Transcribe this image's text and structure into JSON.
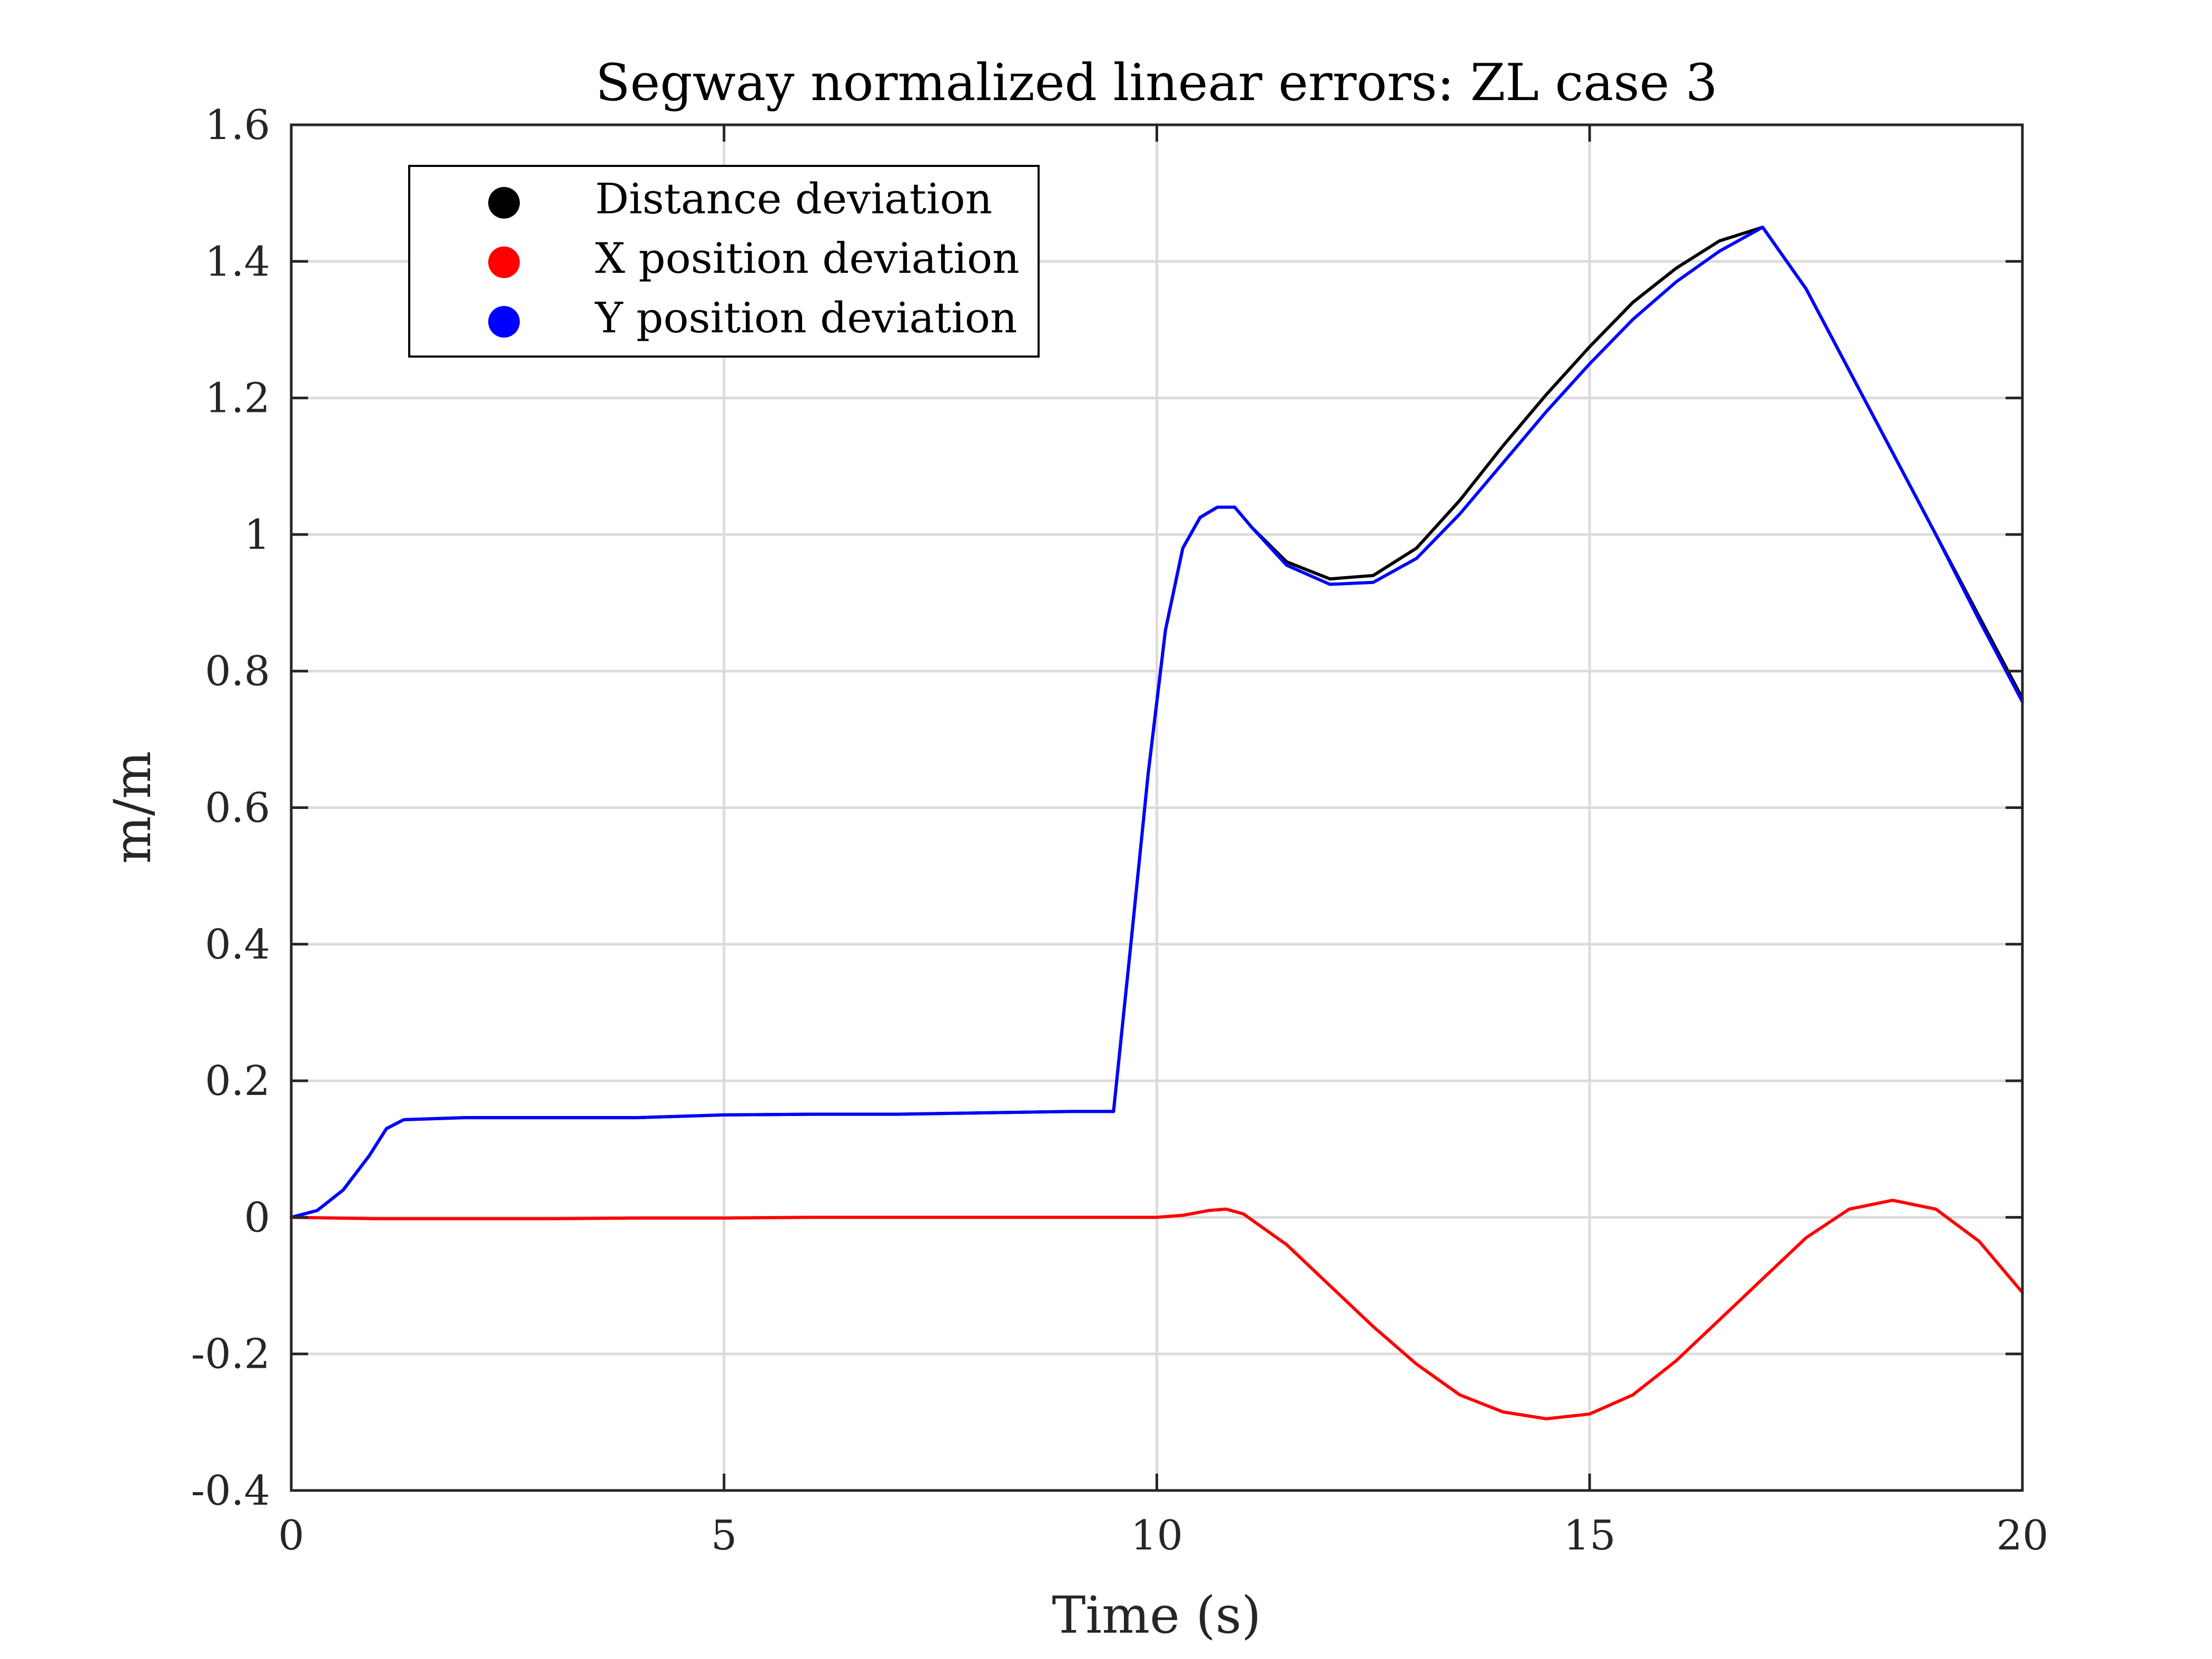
{
  "chart_data": {
    "type": "line",
    "title": "Segway normalized linear errors: ZL case 3",
    "xlabel": "Time (s)",
    "ylabel": "m/m",
    "xlim": [
      0,
      20
    ],
    "ylim": [
      -0.4,
      1.6
    ],
    "xticks": [
      0,
      5,
      10,
      15,
      20
    ],
    "xtick_labels": [
      "0",
      "5",
      "10",
      "15",
      "20"
    ],
    "yticks": [
      -0.4,
      -0.2,
      0,
      0.2,
      0.4,
      0.6,
      0.8,
      1,
      1.2,
      1.4,
      1.6
    ],
    "ytick_labels": [
      "-0.4",
      "-0.2",
      "0",
      "0.2",
      "0.4",
      "0.6",
      "0.8",
      "1",
      "1.2",
      "1.4",
      "1.6"
    ],
    "grid": true,
    "legend_position": "top-left",
    "series": [
      {
        "name": "Distance deviation",
        "color": "#000000",
        "points": [
          [
            0,
            0
          ],
          [
            0.3,
            0.01
          ],
          [
            0.6,
            0.04
          ],
          [
            0.9,
            0.09
          ],
          [
            1.1,
            0.13
          ],
          [
            1.3,
            0.143
          ],
          [
            2,
            0.146
          ],
          [
            3,
            0.146
          ],
          [
            4,
            0.146
          ],
          [
            5,
            0.15
          ],
          [
            6,
            0.151
          ],
          [
            7,
            0.151
          ],
          [
            8,
            0.153
          ],
          [
            9,
            0.155
          ],
          [
            9.5,
            0.155
          ],
          [
            9.7,
            0.4
          ],
          [
            9.9,
            0.65
          ],
          [
            10.1,
            0.86
          ],
          [
            10.3,
            0.98
          ],
          [
            10.5,
            1.025
          ],
          [
            10.7,
            1.04
          ],
          [
            10.9,
            1.04
          ],
          [
            11.1,
            1.01
          ],
          [
            11.5,
            0.96
          ],
          [
            12,
            0.935
          ],
          [
            12.5,
            0.94
          ],
          [
            13,
            0.98
          ],
          [
            13.5,
            1.05
          ],
          [
            14,
            1.13
          ],
          [
            14.5,
            1.205
          ],
          [
            15,
            1.275
          ],
          [
            15.5,
            1.34
          ],
          [
            16,
            1.39
          ],
          [
            16.5,
            1.43
          ],
          [
            17,
            1.45
          ],
          [
            17.5,
            1.36
          ],
          [
            18,
            1.24
          ],
          [
            18.5,
            1.12
          ],
          [
            19,
            1
          ],
          [
            19.5,
            0.88
          ],
          [
            20,
            0.76
          ]
        ]
      },
      {
        "name": "X position deviation",
        "color": "#ff0000",
        "points": [
          [
            0,
            0
          ],
          [
            1,
            -0.002
          ],
          [
            2,
            -0.002
          ],
          [
            3,
            -0.002
          ],
          [
            4,
            -0.001
          ],
          [
            5,
            -0.001
          ],
          [
            6,
            0
          ],
          [
            7,
            0
          ],
          [
            8,
            0
          ],
          [
            9,
            0
          ],
          [
            10,
            0
          ],
          [
            10.3,
            0.003
          ],
          [
            10.6,
            0.01
          ],
          [
            10.8,
            0.012
          ],
          [
            11,
            0.005
          ],
          [
            11.5,
            -0.04
          ],
          [
            12,
            -0.1
          ],
          [
            12.5,
            -0.16
          ],
          [
            13,
            -0.215
          ],
          [
            13.5,
            -0.26
          ],
          [
            14,
            -0.285
          ],
          [
            14.5,
            -0.295
          ],
          [
            15,
            -0.288
          ],
          [
            15.5,
            -0.26
          ],
          [
            16,
            -0.21
          ],
          [
            16.5,
            -0.15
          ],
          [
            17,
            -0.09
          ],
          [
            17.5,
            -0.03
          ],
          [
            18,
            0.012
          ],
          [
            18.5,
            0.025
          ],
          [
            19,
            0.012
          ],
          [
            19.5,
            -0.035
          ],
          [
            20,
            -0.11
          ]
        ]
      },
      {
        "name": "Y position deviation",
        "color": "#0000ff",
        "points": [
          [
            0,
            0
          ],
          [
            0.3,
            0.01
          ],
          [
            0.6,
            0.04
          ],
          [
            0.9,
            0.09
          ],
          [
            1.1,
            0.13
          ],
          [
            1.3,
            0.143
          ],
          [
            2,
            0.146
          ],
          [
            3,
            0.146
          ],
          [
            4,
            0.146
          ],
          [
            5,
            0.15
          ],
          [
            6,
            0.151
          ],
          [
            7,
            0.151
          ],
          [
            8,
            0.153
          ],
          [
            9,
            0.155
          ],
          [
            9.5,
            0.155
          ],
          [
            9.7,
            0.4
          ],
          [
            9.9,
            0.65
          ],
          [
            10.1,
            0.86
          ],
          [
            10.3,
            0.98
          ],
          [
            10.5,
            1.025
          ],
          [
            10.7,
            1.04
          ],
          [
            10.9,
            1.04
          ],
          [
            11.1,
            1.01
          ],
          [
            11.5,
            0.955
          ],
          [
            12,
            0.927
          ],
          [
            12.5,
            0.93
          ],
          [
            13,
            0.965
          ],
          [
            13.5,
            1.03
          ],
          [
            14,
            1.105
          ],
          [
            14.5,
            1.18
          ],
          [
            15,
            1.25
          ],
          [
            15.5,
            1.315
          ],
          [
            16,
            1.37
          ],
          [
            16.5,
            1.415
          ],
          [
            17,
            1.45
          ],
          [
            17.5,
            1.36
          ],
          [
            18,
            1.24
          ],
          [
            18.5,
            1.12
          ],
          [
            19,
            1
          ],
          [
            19.5,
            0.875
          ],
          [
            20,
            0.755
          ]
        ]
      }
    ]
  }
}
